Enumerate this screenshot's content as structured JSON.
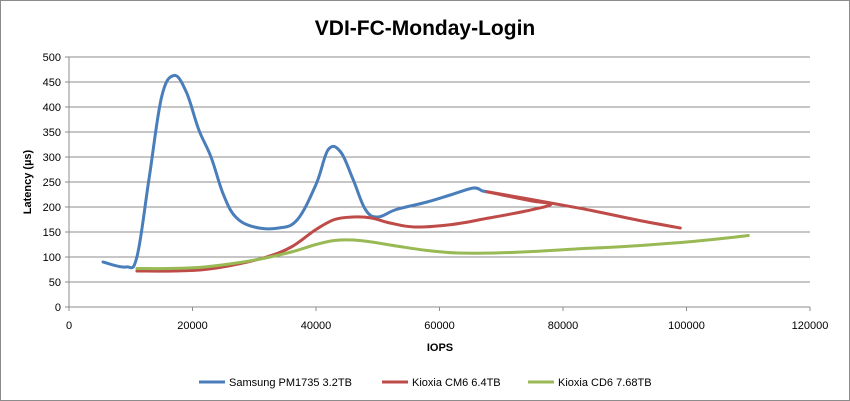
{
  "chart_data": {
    "type": "line",
    "title": "VDI-FC-Monday-Login",
    "xlabel": "IOPS",
    "ylabel": "Latency (µs)",
    "xlim": [
      0,
      120000
    ],
    "ylim": [
      0,
      500
    ],
    "xticks": [
      "0",
      "20000",
      "40000",
      "60000",
      "80000",
      "100000",
      "120000"
    ],
    "yticks": [
      "0",
      "50",
      "100",
      "150",
      "200",
      "250",
      "300",
      "350",
      "400",
      "450",
      "500"
    ],
    "grid": "horizontal",
    "legend_position": "bottom",
    "series": [
      {
        "name": "Samsung PM1735 3.2TB",
        "color": "#4a7ebb",
        "points": [
          [
            5500,
            90
          ],
          [
            9200,
            80
          ],
          [
            11000,
            100
          ],
          [
            13000,
            260
          ],
          [
            15000,
            420
          ],
          [
            17000,
            463
          ],
          [
            19000,
            430
          ],
          [
            21000,
            355
          ],
          [
            23000,
            300
          ],
          [
            25000,
            225
          ],
          [
            27000,
            180
          ],
          [
            30000,
            160
          ],
          [
            34000,
            158
          ],
          [
            37000,
            175
          ],
          [
            40000,
            245
          ],
          [
            42000,
            315
          ],
          [
            44000,
            310
          ],
          [
            46000,
            255
          ],
          [
            48000,
            195
          ],
          [
            50000,
            180
          ],
          [
            53000,
            195
          ],
          [
            58000,
            210
          ],
          [
            62000,
            225
          ],
          [
            65500,
            238
          ],
          [
            67000,
            232
          ],
          [
            68000,
            230
          ]
        ]
      },
      {
        "name": "Kioxia CM6 6.4TB",
        "color": "#be4b48",
        "points": [
          [
            11000,
            72
          ],
          [
            17000,
            72
          ],
          [
            22000,
            75
          ],
          [
            27000,
            85
          ],
          [
            32000,
            100
          ],
          [
            36000,
            120
          ],
          [
            40000,
            155
          ],
          [
            43000,
            175
          ],
          [
            46000,
            180
          ],
          [
            49000,
            178
          ],
          [
            52000,
            168
          ],
          [
            56000,
            160
          ],
          [
            62000,
            165
          ],
          [
            68000,
            178
          ],
          [
            74000,
            192
          ],
          [
            78000,
            205
          ],
          [
            75000,
            212
          ],
          [
            71000,
            222
          ],
          [
            68000,
            230
          ],
          [
            78000,
            208
          ],
          [
            85000,
            192
          ],
          [
            92000,
            174
          ],
          [
            99000,
            158
          ]
        ]
      },
      {
        "name": "Kioxia CD6 7.68TB",
        "color": "#98b954",
        "points": [
          [
            11000,
            77
          ],
          [
            16000,
            77
          ],
          [
            21000,
            79
          ],
          [
            26000,
            86
          ],
          [
            31000,
            96
          ],
          [
            36000,
            110
          ],
          [
            40000,
            125
          ],
          [
            43000,
            133
          ],
          [
            46000,
            134
          ],
          [
            49000,
            130
          ],
          [
            53000,
            122
          ],
          [
            58000,
            113
          ],
          [
            63000,
            108
          ],
          [
            69000,
            108
          ],
          [
            75000,
            111
          ],
          [
            82000,
            116
          ],
          [
            90000,
            121
          ],
          [
            98000,
            128
          ],
          [
            105000,
            136
          ],
          [
            110000,
            143
          ]
        ]
      }
    ]
  }
}
